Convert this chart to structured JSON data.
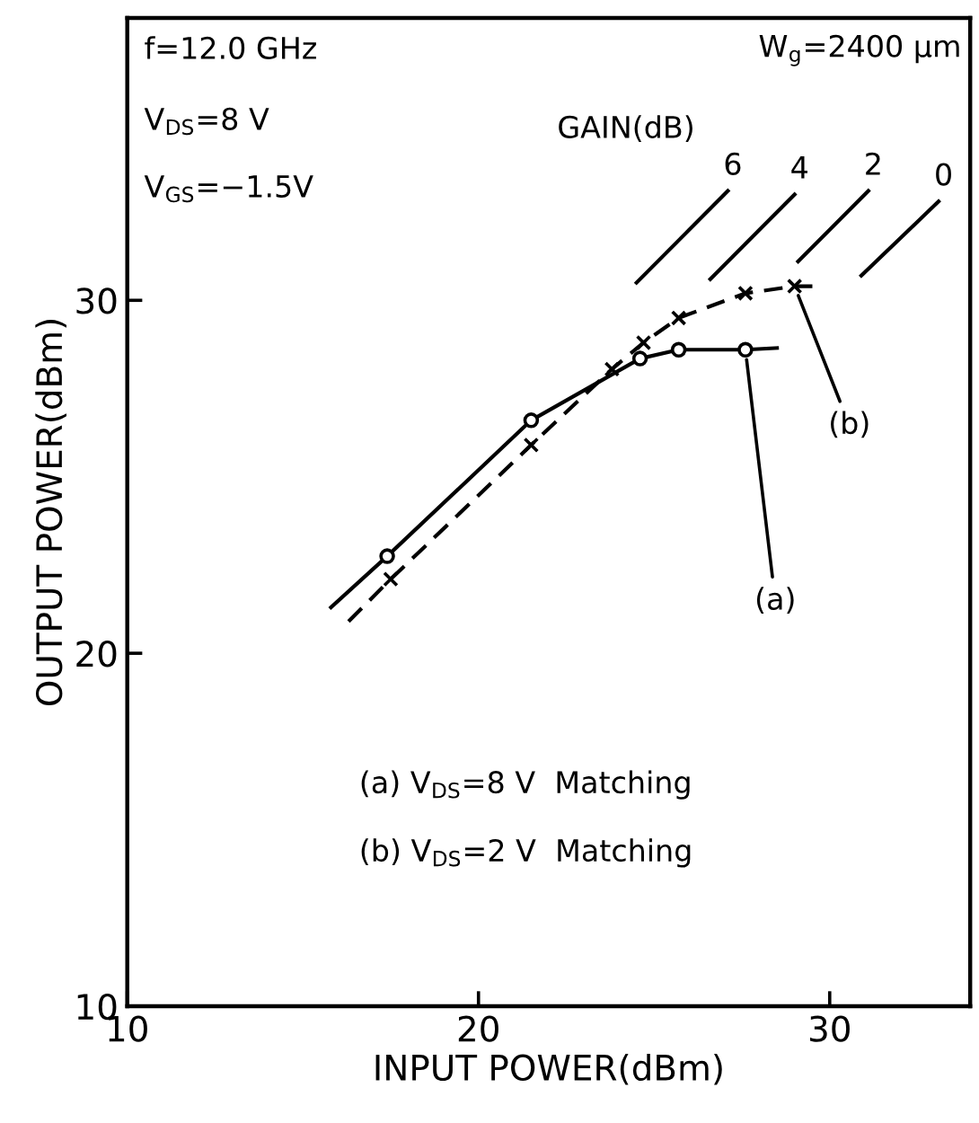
{
  "chart_data": {
    "type": "line",
    "xlabel": "INPUT POWER(dBm)",
    "ylabel": "OUTPUT POWER(dBm)",
    "xlim": [
      10,
      34
    ],
    "ylim": [
      10,
      38
    ],
    "xticks": [
      10,
      20,
      30
    ],
    "yticks": [
      10,
      20,
      30
    ],
    "grid": false,
    "legend": false,
    "series": [
      {
        "color": "#000000",
        "marker": "circle",
        "line_style": "solid",
        "x": [
          15.8,
          17.4,
          21.5,
          24.6,
          25.7,
          27.6,
          28.5
        ],
        "values": [
          21.3,
          22.75,
          26.6,
          28.35,
          28.6,
          28.6,
          28.65
        ]
      },
      {
        "color": "#000000",
        "marker": "cross",
        "line_style": "dashed",
        "x": [
          16.3,
          17.5,
          21.5,
          23.8,
          24.7,
          25.7,
          27.6,
          29.0,
          29.7
        ],
        "values": [
          20.9,
          22.1,
          25.9,
          28.05,
          28.8,
          29.5,
          30.2,
          30.4,
          30.4
        ]
      },
      {
        "name": "6",
        "color": "#000000",
        "marker": "none",
        "line_style": "solid",
        "x": [
          24.5,
          27.1
        ],
        "values": [
          30.5,
          33.1
        ]
      },
      {
        "name": "4",
        "color": "#000000",
        "marker": "none",
        "line_style": "solid",
        "x": [
          26.6,
          29.0
        ],
        "values": [
          30.6,
          33.0
        ]
      },
      {
        "name": "2",
        "color": "#000000",
        "marker": "none",
        "line_style": "solid",
        "x": [
          29.1,
          31.1
        ],
        "values": [
          31.1,
          33.1
        ]
      },
      {
        "name": "0",
        "color": "#000000",
        "marker": "none",
        "line_style": "solid",
        "x": [
          30.9,
          33.1
        ],
        "values": [
          30.7,
          32.8
        ]
      }
    ],
    "annotations": [
      {
        "text": "(a)",
        "x": 27.6,
        "y": 28.6
      },
      {
        "text": "(b)",
        "x": 29.0,
        "y": 30.4
      },
      "f=12.0 GHz",
      "V$_{DS}$=8 V",
      "V$_{GS}$=−1.5V",
      "W$_{g}$=2400 μm",
      "GAIN(dB)",
      "(a) V$_{DS}$=8 V  Matching",
      "(b) V$_{DS}$=2 V  Matching"
    ]
  }
}
